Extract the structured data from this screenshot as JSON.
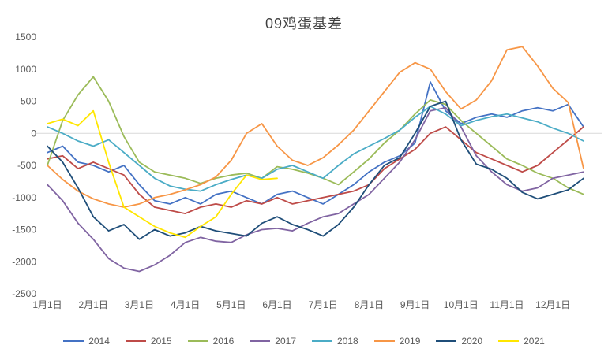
{
  "chart_data": {
    "type": "line",
    "title": "09鸡蛋基差",
    "xlabel": "",
    "ylabel": "",
    "ylim": [
      -2500,
      1500
    ],
    "y_ticks": [
      1500,
      1000,
      500,
      0,
      -500,
      -1000,
      -1500,
      -2000,
      -2500
    ],
    "x_tick_labels": [
      "1月1日",
      "2月1日",
      "3月1日",
      "4月1日",
      "5月1日",
      "6月1日",
      "7月1日",
      "8月1日",
      "9月1日",
      "10月1日",
      "11月1日",
      "12月1日"
    ],
    "x_range_months": [
      0,
      12
    ],
    "points_per_month": 3,
    "grid": false,
    "legend_position": "bottom",
    "zero_line_color": "#d9d9d9",
    "axis_text_color": "#595959",
    "series": [
      {
        "name": "2014",
        "color": "#4472C4",
        "values": [
          -300,
          -200,
          -450,
          -500,
          -600,
          -500,
          -800,
          -1050,
          -1100,
          -1000,
          -1100,
          -950,
          -900,
          -1000,
          -1100,
          -950,
          -900,
          -1000,
          -1100,
          -950,
          -800,
          -600,
          -450,
          -350,
          -150,
          800,
          350,
          150,
          250,
          300,
          250,
          350,
          400,
          350,
          450,
          100
        ]
      },
      {
        "name": "2015",
        "color": "#BE4B48",
        "values": [
          -400,
          -350,
          -550,
          -450,
          -550,
          -650,
          -950,
          -1150,
          -1200,
          -1250,
          -1150,
          -1100,
          -1150,
          -1050,
          -1100,
          -1000,
          -1100,
          -1050,
          -1000,
          -950,
          -900,
          -800,
          -550,
          -400,
          -250,
          0,
          100,
          -100,
          -300,
          -400,
          -500,
          -600,
          -500,
          -300,
          -100,
          100
        ]
      },
      {
        "name": "2016",
        "color": "#9BBB59",
        "values": [
          -500,
          200,
          600,
          880,
          500,
          -50,
          -450,
          -600,
          -650,
          -700,
          -780,
          -700,
          -650,
          -620,
          -700,
          -520,
          -560,
          -620,
          -700,
          -800,
          -600,
          -400,
          -150,
          50,
          300,
          520,
          450,
          200,
          0,
          -200,
          -400,
          -500,
          -620,
          -700,
          -850,
          -950
        ]
      },
      {
        "name": "2017",
        "color": "#8064A2",
        "values": [
          -800,
          -1050,
          -1400,
          -1650,
          -1950,
          -2100,
          -2150,
          -2050,
          -1900,
          -1700,
          -1620,
          -1680,
          -1700,
          -1580,
          -1500,
          -1480,
          -1520,
          -1400,
          -1300,
          -1250,
          -1100,
          -950,
          -700,
          -450,
          -100,
          350,
          400,
          100,
          -350,
          -600,
          -800,
          -900,
          -850,
          -700,
          -650,
          -600
        ]
      },
      {
        "name": "2018",
        "color": "#4BACC6",
        "values": [
          100,
          0,
          -120,
          -200,
          -100,
          -300,
          -500,
          -700,
          -820,
          -870,
          -900,
          -800,
          -720,
          -650,
          -700,
          -560,
          -500,
          -600,
          -700,
          -500,
          -320,
          -200,
          -80,
          50,
          250,
          420,
          300,
          120,
          200,
          260,
          300,
          240,
          180,
          80,
          0,
          -120
        ]
      },
      {
        "name": "2019",
        "color": "#F79646",
        "values": [
          -500,
          -720,
          -900,
          -1020,
          -1100,
          -1150,
          -1100,
          -1000,
          -950,
          -880,
          -800,
          -680,
          -420,
          0,
          150,
          -200,
          -420,
          -500,
          -380,
          -180,
          50,
          350,
          650,
          950,
          1100,
          1000,
          650,
          380,
          520,
          820,
          1300,
          1350,
          1050,
          700,
          480,
          -550
        ]
      },
      {
        "name": "2020",
        "color": "#1F4E79",
        "values": [
          -200,
          -450,
          -850,
          -1300,
          -1520,
          -1420,
          -1650,
          -1500,
          -1600,
          -1550,
          -1450,
          -1520,
          -1560,
          -1600,
          -1400,
          -1300,
          -1420,
          -1500,
          -1600,
          -1420,
          -1150,
          -800,
          -500,
          -380,
          0,
          420,
          500,
          -100,
          -480,
          -560,
          -700,
          -920,
          -1020,
          -950,
          -880,
          -700
        ]
      },
      {
        "name": "2021",
        "color": "#FFE600",
        "values": [
          150,
          220,
          120,
          350,
          -450,
          -1150,
          -1300,
          -1450,
          -1550,
          -1620,
          -1450,
          -1300,
          -950,
          -650,
          -720,
          -700
        ]
      }
    ]
  }
}
